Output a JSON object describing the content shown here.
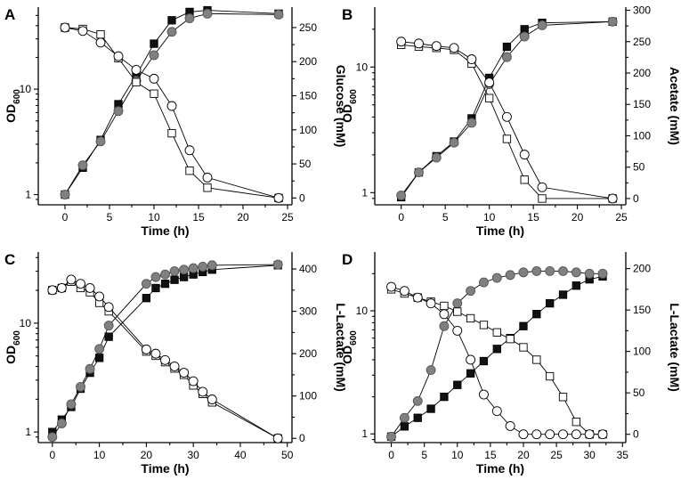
{
  "chart_data": [
    {
      "panel": "A",
      "type": "line",
      "xlabel": "Time (h)",
      "ylabel": "OD600",
      "ylabel_main": "OD",
      "ylabel_sub": "600",
      "y2label": "Glucose (mM)",
      "xlim": [
        -3,
        25.5
      ],
      "xticks": [
        0,
        5,
        10,
        15,
        20,
        25
      ],
      "ylim": [
        0.8,
        60
      ],
      "yticks": [
        1,
        10
      ],
      "y2lim": [
        -10,
        280
      ],
      "y2ticks": [
        0,
        50,
        100,
        150,
        200,
        250
      ],
      "series": [
        {
          "name": "OD600 filled square",
          "axis": "left",
          "marker": "square",
          "fill": "#111111",
          "x": [
            0,
            2,
            4,
            6,
            8,
            10,
            12,
            14,
            16,
            24
          ],
          "y": [
            1.0,
            1.8,
            3.3,
            7.2,
            13.5,
            27,
            45,
            54,
            56,
            52
          ]
        },
        {
          "name": "OD600 filled circle",
          "axis": "left",
          "marker": "circle",
          "fill": "#808080",
          "x": [
            0,
            2,
            4,
            6,
            8,
            10,
            12,
            14,
            16,
            24
          ],
          "y": [
            1.0,
            1.9,
            3.2,
            6.2,
            12,
            21,
            35,
            47,
            52,
            51
          ]
        },
        {
          "name": "Glucose open square",
          "axis": "right",
          "marker": "square",
          "fill": "#ffffff",
          "x": [
            0,
            2,
            4,
            6,
            8,
            10,
            12,
            14,
            16,
            24
          ],
          "y": [
            250,
            248,
            240,
            205,
            170,
            153,
            95,
            40,
            15,
            0
          ]
        },
        {
          "name": "Glucose open circle",
          "axis": "right",
          "marker": "circle",
          "fill": "#ffffff",
          "x": [
            0,
            2,
            4,
            6,
            8,
            10,
            12,
            14,
            16,
            24
          ],
          "y": [
            250,
            245,
            228,
            208,
            188,
            175,
            135,
            70,
            30,
            0
          ]
        }
      ]
    },
    {
      "panel": "B",
      "type": "line",
      "xlabel": "Time (h)",
      "ylabel": "OD600",
      "ylabel_main": "OD",
      "ylabel_sub": "600",
      "y2label": "Acetate (mM)",
      "xlim": [
        -3,
        25.5
      ],
      "xticks": [
        0,
        5,
        10,
        15,
        20,
        25
      ],
      "ylim": [
        0.8,
        30
      ],
      "yticks": [
        1,
        10
      ],
      "y2lim": [
        -10,
        305
      ],
      "y2ticks": [
        0,
        50,
        100,
        150,
        200,
        250,
        300
      ],
      "series": [
        {
          "name": "OD600 filled square",
          "axis": "left",
          "marker": "square",
          "fill": "#111111",
          "x": [
            0,
            2,
            4,
            6,
            8,
            10,
            12,
            14,
            16,
            24
          ],
          "y": [
            0.92,
            1.45,
            1.95,
            2.55,
            3.9,
            8.2,
            14.5,
            20,
            22.5,
            23
          ]
        },
        {
          "name": "OD600 filled circle",
          "axis": "left",
          "marker": "circle",
          "fill": "#808080",
          "x": [
            0,
            2,
            4,
            6,
            8,
            10,
            12,
            14,
            16,
            24
          ],
          "y": [
            0.95,
            1.45,
            1.9,
            2.5,
            3.6,
            7.3,
            12,
            17.5,
            21.5,
            23
          ]
        },
        {
          "name": "Acetate open square",
          "axis": "right",
          "marker": "square",
          "fill": "#ffffff",
          "x": [
            0,
            2,
            4,
            6,
            8,
            10,
            12,
            14,
            16,
            24
          ],
          "y": [
            245,
            242,
            240,
            237,
            215,
            160,
            95,
            30,
            0,
            0
          ]
        },
        {
          "name": "Acetate open circle",
          "axis": "right",
          "marker": "circle",
          "fill": "#ffffff",
          "x": [
            0,
            2,
            4,
            6,
            8,
            10,
            12,
            14,
            16,
            24
          ],
          "y": [
            250,
            247,
            243,
            240,
            222,
            185,
            130,
            70,
            18,
            0
          ]
        }
      ]
    },
    {
      "panel": "C",
      "type": "line",
      "xlabel": "Time (h)",
      "ylabel": "OD600",
      "ylabel_main": "OD",
      "ylabel_sub": "600",
      "y2label": "L-Lactate (mM)",
      "xlim": [
        -3,
        51
      ],
      "xticks": [
        0,
        10,
        20,
        30,
        40,
        50
      ],
      "ylim": [
        0.8,
        45
      ],
      "yticks": [
        1,
        10
      ],
      "y2lim": [
        -10,
        440
      ],
      "y2ticks": [
        0,
        100,
        200,
        300,
        400
      ],
      "series": [
        {
          "name": "OD600 filled square",
          "axis": "left",
          "marker": "square",
          "fill": "#111111",
          "x": [
            0,
            2,
            4,
            6,
            8,
            10,
            12,
            20,
            22,
            24,
            26,
            28,
            30,
            32,
            34,
            48
          ],
          "y": [
            1.0,
            1.3,
            1.7,
            2.5,
            3.5,
            4.8,
            7.5,
            17,
            21,
            23,
            25,
            26.5,
            28,
            29.5,
            31,
            34
          ]
        },
        {
          "name": "OD600 filled circle",
          "axis": "left",
          "marker": "circle",
          "fill": "#808080",
          "x": [
            0,
            2,
            4,
            6,
            8,
            10,
            12,
            20,
            22,
            24,
            26,
            28,
            30,
            32,
            34,
            48
          ],
          "y": [
            0.9,
            1.2,
            1.8,
            2.6,
            3.8,
            5.8,
            9.5,
            23,
            26.5,
            28,
            30,
            31,
            32,
            33,
            34,
            34.5
          ]
        },
        {
          "name": "L-Lactate open square",
          "axis": "right",
          "marker": "square",
          "fill": "#ffffff",
          "x": [
            0,
            2,
            4,
            6,
            8,
            10,
            12,
            20,
            22,
            24,
            26,
            28,
            30,
            32,
            34,
            48
          ],
          "y": [
            350,
            355,
            370,
            355,
            345,
            320,
            300,
            205,
            195,
            180,
            165,
            150,
            125,
            105,
            85,
            0
          ]
        },
        {
          "name": "L-Lactate open circle",
          "axis": "right",
          "marker": "circle",
          "fill": "#ffffff",
          "x": [
            0,
            2,
            4,
            6,
            8,
            10,
            12,
            20,
            22,
            24,
            26,
            28,
            30,
            32,
            34,
            48
          ],
          "y": [
            350,
            355,
            375,
            365,
            355,
            335,
            310,
            210,
            200,
            185,
            170,
            155,
            135,
            110,
            92,
            0
          ]
        }
      ]
    },
    {
      "panel": "D",
      "type": "line",
      "xlabel": "Time (h)",
      "ylabel": "OD600",
      "ylabel_main": "OD",
      "ylabel_sub": "600",
      "y2label": "L-Lactate (mM)",
      "xlim": [
        -2.5,
        35.5
      ],
      "xticks": [
        0,
        5,
        10,
        15,
        20,
        25,
        30,
        35
      ],
      "ylim": [
        0.85,
        30
      ],
      "yticks": [
        1,
        10
      ],
      "y2lim": [
        -10,
        220
      ],
      "y2ticks": [
        0,
        50,
        100,
        150,
        200
      ],
      "series": [
        {
          "name": "OD600 filled square",
          "axis": "left",
          "marker": "square",
          "fill": "#111111",
          "x": [
            0,
            2,
            4,
            6,
            8,
            10,
            12,
            14,
            16,
            18,
            20,
            22,
            24,
            26,
            28,
            30,
            32
          ],
          "y": [
            0.95,
            1.15,
            1.35,
            1.6,
            2.0,
            2.5,
            3.1,
            3.9,
            4.9,
            6.0,
            7.5,
            9.4,
            11.5,
            13.5,
            16,
            18,
            19
          ]
        },
        {
          "name": "OD600 filled circle",
          "axis": "left",
          "marker": "circle",
          "fill": "#808080",
          "x": [
            0,
            2,
            4,
            6,
            8,
            10,
            12,
            14,
            16,
            18,
            20,
            22,
            24,
            26,
            28,
            30,
            32
          ],
          "y": [
            0.95,
            1.35,
            1.85,
            3.3,
            7.5,
            11.5,
            14.5,
            17,
            18.5,
            19.5,
            20.5,
            21,
            21,
            21,
            20.5,
            20,
            20
          ]
        },
        {
          "name": "L-Lactate open square",
          "axis": "right",
          "marker": "square",
          "fill": "#ffffff",
          "x": [
            0,
            2,
            4,
            6,
            8,
            10,
            12,
            14,
            16,
            18,
            20,
            22,
            24,
            26,
            28,
            30,
            32
          ],
          "y": [
            175,
            170,
            165,
            160,
            155,
            148,
            140,
            132,
            123,
            115,
            105,
            90,
            70,
            45,
            15,
            0,
            0
          ]
        },
        {
          "name": "L-Lactate open circle",
          "axis": "right",
          "marker": "circle",
          "fill": "#ffffff",
          "x": [
            0,
            2,
            4,
            6,
            8,
            10,
            12,
            14,
            16,
            18,
            20,
            22,
            24,
            26,
            28,
            30,
            32
          ],
          "y": [
            178,
            173,
            165,
            158,
            145,
            125,
            90,
            48,
            28,
            10,
            0,
            0,
            0,
            0,
            0,
            0,
            0
          ]
        }
      ]
    }
  ]
}
